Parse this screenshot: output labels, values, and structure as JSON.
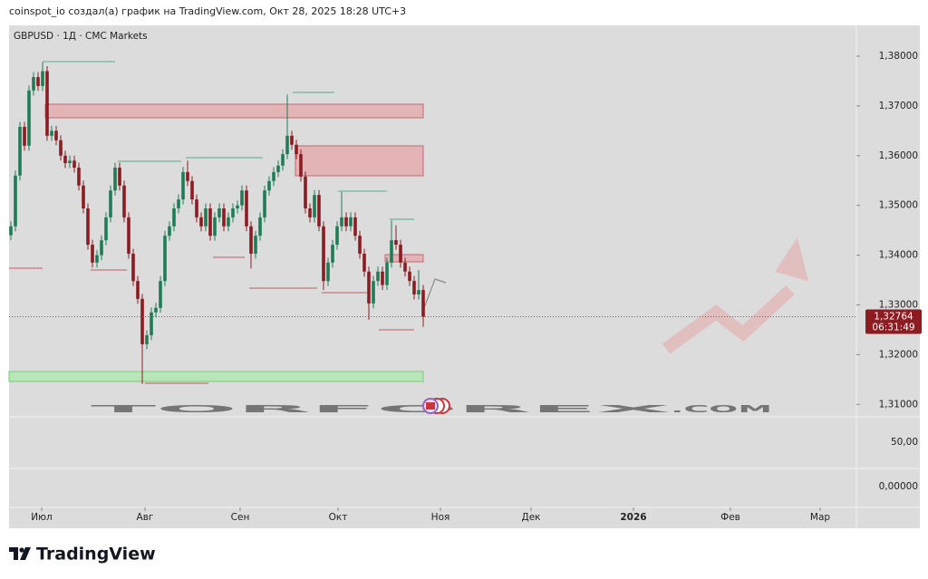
{
  "header": {
    "text": "coinspot_io создал(а) график на TradingView.com, Окт 28, 2025 18:28 UTC+3"
  },
  "footer": {
    "logo": "TradingView"
  },
  "watermark": {
    "main": "TORFOREX",
    "suffix": ".COM"
  },
  "chart_data": {
    "type": "candlestick",
    "title": "GBPUSD · 1Д · CMC Markets",
    "up_color": "#1e7d57",
    "down_color": "#8c1c22",
    "open": [
      1.344,
      1.3458,
      1.356,
      1.3658,
      1.362,
      1.3731,
      1.3758,
      1.374,
      1.377,
      1.364,
      1.365,
      1.3631,
      1.36,
      1.3585,
      1.359,
      1.3576,
      1.354,
      1.3494,
      1.3421,
      1.3385,
      1.34,
      1.343,
      1.3476,
      1.353,
      1.3576,
      1.354,
      1.3476,
      1.3403,
      1.3348,
      1.3312,
      1.3221,
      1.3239,
      1.3285,
      1.3294,
      1.3348,
      1.3439,
      1.3458,
      1.3494,
      1.3512,
      1.3567,
      1.3549,
      1.3512,
      1.3476,
      1.3458,
      1.3494,
      1.3439,
      1.3476,
      1.3494,
      1.3458,
      1.3476,
      1.3494,
      1.35,
      1.353,
      1.3458,
      1.3403,
      1.3439,
      1.3476,
      1.353,
      1.3549,
      1.3567,
      1.358,
      1.3603,
      1.364,
      1.3622,
      1.3603,
      1.3558,
      1.3494,
      1.3476,
      1.3521,
      1.3458,
      1.3348,
      1.3385,
      1.3421,
      1.3458,
      1.3476,
      1.3458,
      1.3476,
      1.3439,
      1.3403,
      1.3367,
      1.3303,
      1.3348,
      1.3367,
      1.334,
      1.3385,
      1.343,
      1.3421,
      1.3385,
      1.3367,
      1.3348,
      1.3321,
      1.333
    ],
    "high": [
      1.3468,
      1.357,
      1.3668,
      1.3668,
      1.3741,
      1.3768,
      1.3768,
      1.3788,
      1.378,
      1.366,
      1.366,
      1.3641,
      1.361,
      1.36,
      1.36,
      1.3586,
      1.355,
      1.3504,
      1.3431,
      1.341,
      1.344,
      1.3486,
      1.354,
      1.3586,
      1.3586,
      1.355,
      1.3486,
      1.3413,
      1.3358,
      1.3322,
      1.3249,
      1.3295,
      1.3304,
      1.3358,
      1.3449,
      1.3468,
      1.3504,
      1.3522,
      1.3577,
      1.359,
      1.3559,
      1.3522,
      1.3486,
      1.3504,
      1.3504,
      1.3486,
      1.3504,
      1.3504,
      1.3486,
      1.3504,
      1.351,
      1.354,
      1.354,
      1.3468,
      1.3449,
      1.3486,
      1.354,
      1.3559,
      1.3577,
      1.359,
      1.3613,
      1.3723,
      1.365,
      1.3632,
      1.3613,
      1.3568,
      1.3504,
      1.3531,
      1.3531,
      1.3468,
      1.3395,
      1.3431,
      1.3468,
      1.3527,
      1.3486,
      1.3486,
      1.3486,
      1.3449,
      1.3413,
      1.3377,
      1.3358,
      1.3377,
      1.3377,
      1.3395,
      1.347,
      1.346,
      1.3431,
      1.3395,
      1.3377,
      1.3358,
      1.337,
      1.334
    ],
    "low": [
      1.343,
      1.3448,
      1.355,
      1.361,
      1.361,
      1.3721,
      1.373,
      1.373,
      1.363,
      1.363,
      1.3621,
      1.359,
      1.3575,
      1.3575,
      1.3566,
      1.353,
      1.3484,
      1.3411,
      1.3375,
      1.3375,
      1.339,
      1.342,
      1.3466,
      1.352,
      1.353,
      1.3466,
      1.3393,
      1.3338,
      1.3302,
      1.3141,
      1.3211,
      1.3229,
      1.3275,
      1.3284,
      1.3338,
      1.3429,
      1.3448,
      1.3484,
      1.3502,
      1.3539,
      1.3502,
      1.3466,
      1.3448,
      1.3448,
      1.3429,
      1.3429,
      1.3466,
      1.3448,
      1.3448,
      1.3466,
      1.3484,
      1.349,
      1.3448,
      1.3373,
      1.3393,
      1.3429,
      1.3466,
      1.352,
      1.3539,
      1.3557,
      1.357,
      1.3593,
      1.3612,
      1.3593,
      1.3548,
      1.3484,
      1.3466,
      1.3466,
      1.3448,
      1.333,
      1.3338,
      1.3375,
      1.3411,
      1.3448,
      1.3448,
      1.3448,
      1.3429,
      1.3393,
      1.3357,
      1.327,
      1.3293,
      1.3338,
      1.333,
      1.333,
      1.3375,
      1.3411,
      1.3375,
      1.3357,
      1.3338,
      1.3311,
      1.3311,
      1.3256
    ],
    "close": [
      1.3458,
      1.356,
      1.3658,
      1.362,
      1.3731,
      1.3758,
      1.374,
      1.377,
      1.364,
      1.365,
      1.3631,
      1.36,
      1.3585,
      1.359,
      1.3576,
      1.354,
      1.3494,
      1.3421,
      1.3385,
      1.34,
      1.343,
      1.3476,
      1.353,
      1.3576,
      1.354,
      1.3476,
      1.3403,
      1.3348,
      1.3312,
      1.3221,
      1.3239,
      1.3285,
      1.3294,
      1.3348,
      1.3439,
      1.3458,
      1.3494,
      1.3512,
      1.3567,
      1.3549,
      1.3512,
      1.3476,
      1.3458,
      1.3494,
      1.3439,
      1.3476,
      1.3494,
      1.3458,
      1.3476,
      1.3494,
      1.35,
      1.353,
      1.3458,
      1.3403,
      1.3439,
      1.3476,
      1.353,
      1.3549,
      1.3567,
      1.358,
      1.3603,
      1.364,
      1.3622,
      1.3603,
      1.3558,
      1.3494,
      1.3476,
      1.3521,
      1.3458,
      1.3348,
      1.3385,
      1.3421,
      1.3458,
      1.3476,
      1.3458,
      1.3476,
      1.3439,
      1.3403,
      1.3367,
      1.3303,
      1.3348,
      1.3367,
      1.334,
      1.3385,
      1.343,
      1.3421,
      1.3385,
      1.3367,
      1.3348,
      1.3321,
      1.333,
      1.3276
    ],
    "xlim": [
      -0.4,
      186.6
    ],
    "xticks": [
      {
        "value": 6.8,
        "label": "Июл"
      },
      {
        "value": 29.6,
        "label": "Авг"
      },
      {
        "value": 50.6,
        "label": "Сен"
      },
      {
        "value": 72.2,
        "label": "Окт"
      },
      {
        "value": 94.8,
        "label": "Ноя"
      },
      {
        "value": 114.8,
        "label": "Дек"
      },
      {
        "value": 137.4,
        "label": "2026"
      },
      {
        "value": 158.8,
        "label": "Фев"
      },
      {
        "value": 178.6,
        "label": "Мар"
      }
    ],
    "ylim": [
      1.30787,
      1.38583
    ],
    "yticks": [
      {
        "value": 1.38,
        "label": "1,38000"
      },
      {
        "value": 1.37,
        "label": "1,37000"
      },
      {
        "value": 1.36,
        "label": "1,36000"
      },
      {
        "value": 1.35,
        "label": "1,35000"
      },
      {
        "value": 1.34,
        "label": "1,34000"
      },
      {
        "value": 1.33,
        "label": "1,33000"
      },
      {
        "value": 1.32,
        "label": "1,32000"
      },
      {
        "value": 1.31,
        "label": "1,31000"
      }
    ],
    "last_price": {
      "value": 1.32764,
      "label": "1,32764"
    },
    "countdown": "06:31:49",
    "panes": [
      {
        "label": "50,00"
      },
      {
        "label": "0,00000"
      }
    ]
  }
}
